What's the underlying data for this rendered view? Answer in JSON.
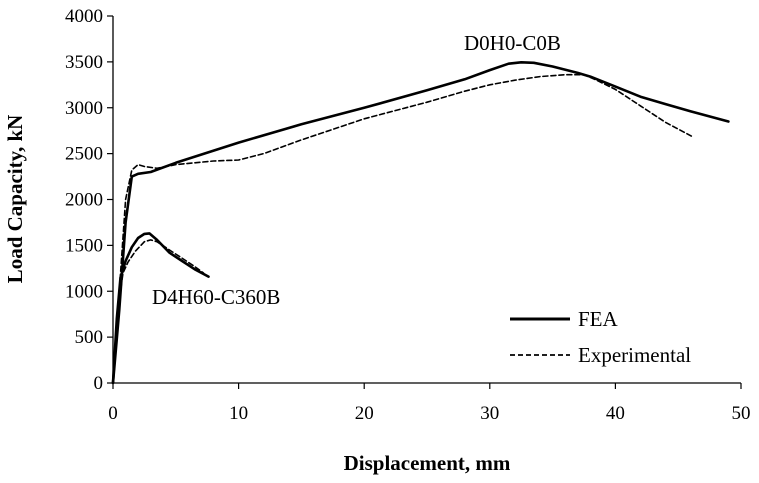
{
  "chart_data": {
    "type": "line",
    "xlabel": "Displacement, mm",
    "ylabel": "Load Capacity, kN",
    "xlim": [
      0,
      50
    ],
    "ylim": [
      0,
      4000
    ],
    "xticks": [
      0,
      10,
      20,
      30,
      40,
      50
    ],
    "yticks": [
      0,
      500,
      1000,
      1500,
      2000,
      2500,
      3000,
      3500,
      4000
    ],
    "grid": false,
    "legend_position": "bottom-right",
    "legend": [
      {
        "name": "FEA",
        "style": "solid"
      },
      {
        "name": "Experimental",
        "style": "dashed"
      }
    ],
    "annotations": [
      {
        "text": "D0H0-C0B",
        "near_specimen": "D0H0-C0B"
      },
      {
        "text": "D4H60-C360B",
        "near_specimen": "D4H60-C360B"
      }
    ],
    "series": [
      {
        "name": "FEA",
        "specimen": "D0H0-C0B",
        "style": "solid",
        "color": "#000000",
        "x": [
          0,
          0.5,
          1.0,
          1.5,
          2.0,
          3.0,
          5,
          10,
          15,
          20,
          25,
          28,
          30,
          31.5,
          32.5,
          33.5,
          35,
          37,
          38,
          40,
          42,
          44,
          46,
          49
        ],
        "y": [
          0,
          800,
          1750,
          2250,
          2280,
          2300,
          2400,
          2620,
          2820,
          3000,
          3190,
          3310,
          3410,
          3480,
          3495,
          3490,
          3450,
          3380,
          3340,
          3230,
          3120,
          3040,
          2960,
          2850
        ]
      },
      {
        "name": "Experimental",
        "specimen": "D0H0-C0B",
        "style": "dashed",
        "color": "#000000",
        "x": [
          0,
          0.5,
          1.0,
          1.5,
          2.0,
          2.5,
          3.5,
          5,
          8,
          10,
          12,
          15,
          20,
          25,
          28,
          30,
          32,
          34,
          36,
          37.5,
          38.5,
          40,
          42,
          44,
          46.2
        ],
        "y": [
          0,
          1000,
          2000,
          2320,
          2380,
          2360,
          2340,
          2380,
          2420,
          2430,
          2500,
          2650,
          2880,
          3060,
          3180,
          3250,
          3300,
          3340,
          3360,
          3360,
          3300,
          3200,
          3020,
          2840,
          2680
        ]
      },
      {
        "name": "FEA",
        "specimen": "D4H60-C360B",
        "style": "solid",
        "color": "#000000",
        "x": [
          0,
          0.3,
          0.6,
          1.0,
          1.5,
          2.0,
          2.5,
          2.9,
          3.5,
          4.5,
          5.5,
          6.5,
          7.6
        ],
        "y": [
          0,
          700,
          1150,
          1330,
          1480,
          1580,
          1625,
          1630,
          1560,
          1420,
          1330,
          1240,
          1160
        ]
      },
      {
        "name": "Experimental",
        "specimen": "D4H60-C360B",
        "style": "dashed",
        "color": "#000000",
        "x": [
          0,
          0.4,
          0.8,
          1.2,
          1.8,
          2.5,
          3.0,
          3.5,
          4.5,
          5.5,
          6.5,
          7.2
        ],
        "y": [
          0,
          800,
          1200,
          1320,
          1440,
          1540,
          1560,
          1540,
          1450,
          1360,
          1270,
          1200
        ]
      }
    ]
  }
}
